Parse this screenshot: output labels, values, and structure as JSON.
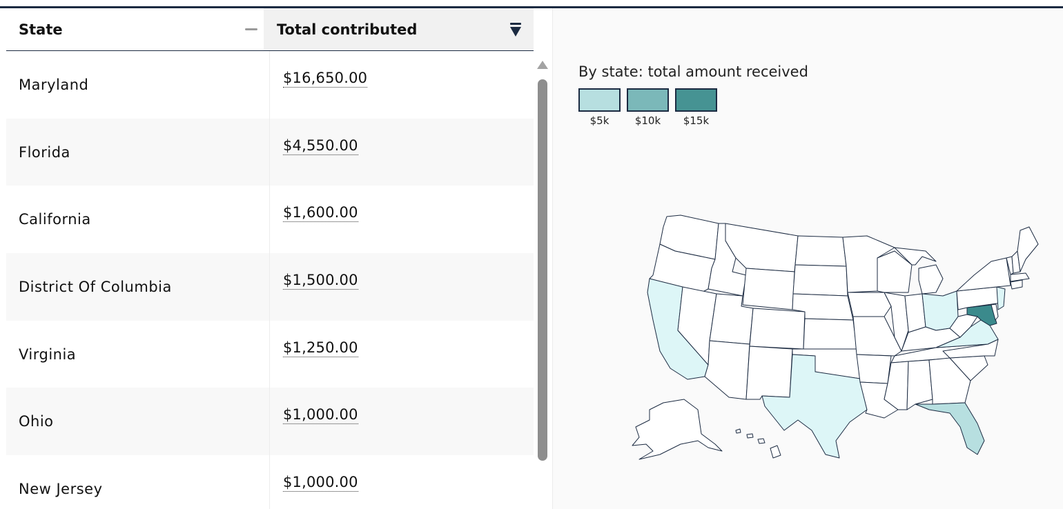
{
  "table": {
    "columns": [
      "State",
      "Total contributed"
    ],
    "rows": [
      {
        "state": "Maryland",
        "amount": "$16,650.00"
      },
      {
        "state": "Florida",
        "amount": "$4,550.00"
      },
      {
        "state": "California",
        "amount": "$1,600.00"
      },
      {
        "state": "District Of Columbia",
        "amount": "$1,500.00"
      },
      {
        "state": "Virginia",
        "amount": "$1,250.00"
      },
      {
        "state": "Ohio",
        "amount": "$1,000.00"
      },
      {
        "state": "New Jersey",
        "amount": "$1,000.00"
      }
    ]
  },
  "map": {
    "title": "By state: total amount received",
    "legend": [
      {
        "label": "$5k",
        "color": "#b7dfe0"
      },
      {
        "label": "$10k",
        "color": "#7bb8b9"
      },
      {
        "label": "$15k",
        "color": "#469393"
      }
    ],
    "colors": {
      "none": "#ffffff",
      "low": "#ddf6f7",
      "mid": "#b7dfe0",
      "high": "#3b8a8c",
      "border": "#1b2a41"
    }
  }
}
